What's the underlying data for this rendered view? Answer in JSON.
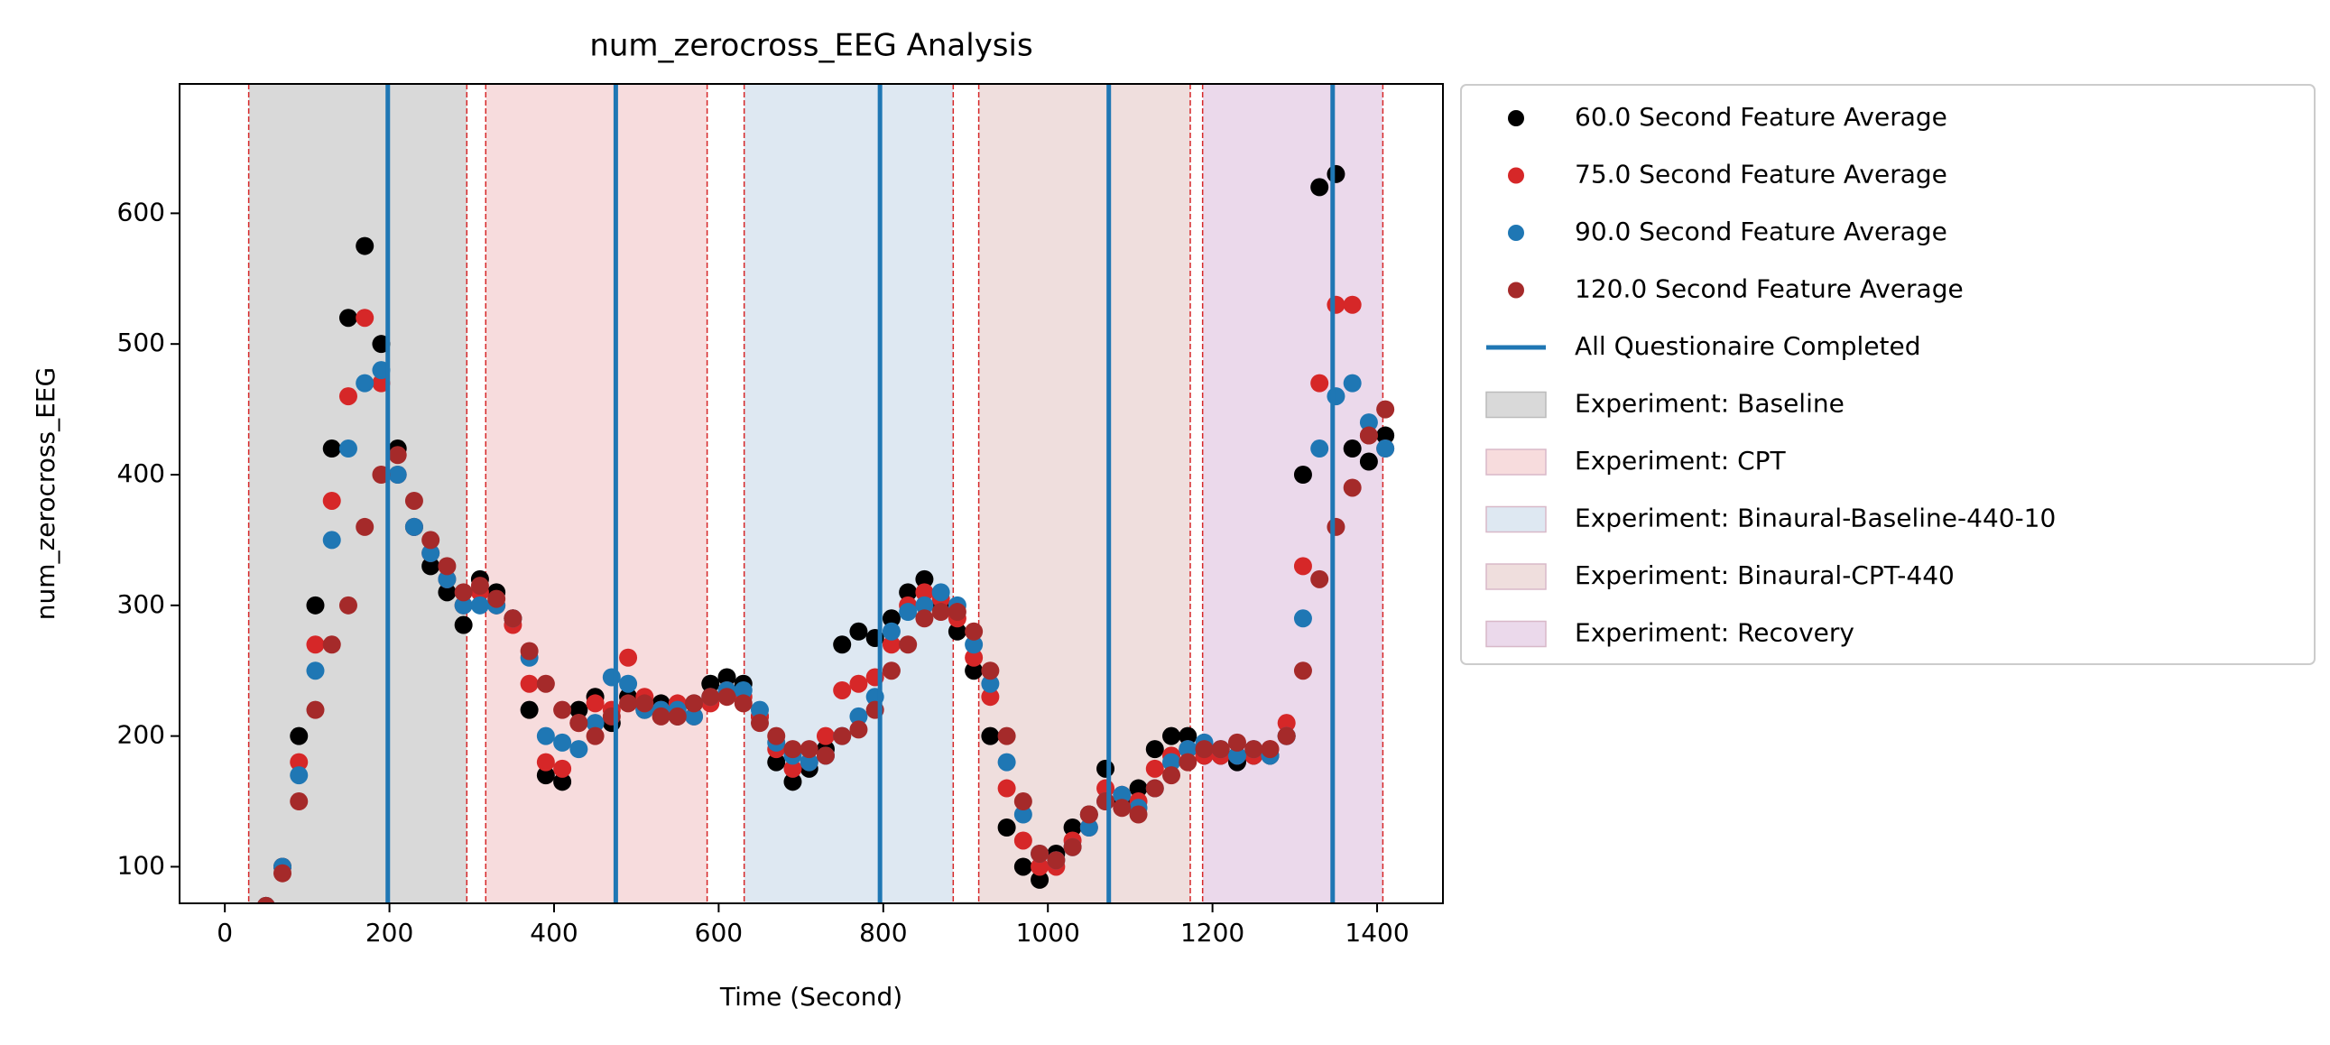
{
  "chart_data": {
    "type": "scatter",
    "title": "num_zerocross_EEG Analysis",
    "xlabel": "Time (Second)",
    "ylabel": "num_zerocross_EEG",
    "xlim": [
      -55,
      1480
    ],
    "ylim": [
      72,
      699
    ],
    "xticks": [
      0,
      200,
      400,
      600,
      800,
      1000,
      1200,
      1400
    ],
    "yticks": [
      100,
      200,
      300,
      400,
      500,
      600
    ],
    "grid": false,
    "legend_position": "outside right",
    "x": [
      50,
      70,
      90,
      110,
      130,
      150,
      170,
      190,
      210,
      230,
      250,
      270,
      290,
      310,
      330,
      350,
      370,
      390,
      410,
      430,
      450,
      470,
      490,
      510,
      530,
      550,
      570,
      590,
      610,
      630,
      650,
      670,
      690,
      710,
      730,
      750,
      770,
      790,
      810,
      830,
      850,
      870,
      890,
      910,
      930,
      950,
      970,
      990,
      1010,
      1030,
      1050,
      1070,
      1090,
      1110,
      1130,
      1150,
      1170,
      1190,
      1210,
      1230,
      1250,
      1270,
      1290,
      1310,
      1330,
      1350,
      1370,
      1390,
      1410
    ],
    "series": [
      {
        "name": "60.0 Second Feature Average",
        "color": "#000000",
        "values": [
          70,
          100,
          200,
          300,
          420,
          520,
          575,
          500,
          420,
          360,
          330,
          310,
          285,
          320,
          310,
          290,
          220,
          170,
          165,
          220,
          230,
          210,
          230,
          220,
          225,
          215,
          225,
          240,
          245,
          240,
          215,
          180,
          165,
          175,
          190,
          270,
          280,
          275,
          290,
          310,
          320,
          300,
          280,
          250,
          200,
          130,
          100,
          90,
          110,
          130,
          140,
          175,
          150,
          160,
          190,
          200,
          200,
          185,
          185,
          180,
          185,
          185,
          200,
          400,
          620,
          630,
          420,
          410,
          430
        ]
      },
      {
        "name": "75.0 Second Feature Average",
        "color": "#d62728",
        "values": [
          70,
          100,
          180,
          270,
          380,
          460,
          520,
          470,
          400,
          360,
          340,
          320,
          300,
          310,
          300,
          285,
          240,
          180,
          175,
          210,
          225,
          220,
          260,
          230,
          220,
          225,
          215,
          225,
          235,
          230,
          215,
          190,
          175,
          180,
          200,
          235,
          240,
          245,
          270,
          300,
          310,
          305,
          290,
          260,
          230,
          160,
          120,
          100,
          100,
          120,
          130,
          160,
          155,
          150,
          175,
          185,
          190,
          185,
          185,
          185,
          185,
          190,
          210,
          330,
          470,
          530,
          530,
          430,
          420
        ]
      },
      {
        "name": "90.0 Second Feature Average",
        "color": "#1f77b4",
        "values": [
          70,
          100,
          170,
          250,
          350,
          420,
          470,
          480,
          400,
          360,
          340,
          320,
          300,
          300,
          300,
          290,
          260,
          200,
          195,
          190,
          210,
          245,
          240,
          220,
          220,
          220,
          215,
          230,
          235,
          235,
          220,
          195,
          185,
          180,
          185,
          200,
          215,
          230,
          280,
          295,
          300,
          310,
          300,
          270,
          240,
          180,
          140,
          110,
          105,
          115,
          130,
          150,
          155,
          145,
          160,
          180,
          190,
          195,
          190,
          185,
          190,
          185,
          200,
          290,
          420,
          460,
          470,
          440,
          420
        ]
      },
      {
        "name": "120.0 Second Feature Average",
        "color": "#a52a2a",
        "values": [
          70,
          95,
          150,
          220,
          270,
          300,
          360,
          400,
          415,
          380,
          350,
          330,
          310,
          315,
          305,
          290,
          265,
          240,
          220,
          210,
          200,
          215,
          225,
          225,
          215,
          215,
          225,
          230,
          230,
          225,
          210,
          200,
          190,
          190,
          185,
          200,
          205,
          220,
          250,
          270,
          290,
          295,
          295,
          280,
          250,
          200,
          150,
          110,
          105,
          115,
          140,
          150,
          145,
          140,
          160,
          170,
          180,
          190,
          190,
          195,
          190,
          190,
          200,
          250,
          320,
          360,
          390,
          430,
          450
        ]
      }
    ],
    "vlines": {
      "name": "All Questionaire Completed",
      "color": "#1f77b4",
      "x": [
        198,
        475,
        796,
        1074,
        1346
      ]
    },
    "regions": [
      {
        "name": "Experiment: Baseline",
        "color": "#d9d9d9",
        "start": 29,
        "end": 294
      },
      {
        "name": "Experiment: CPT",
        "color": "#f7dcdd",
        "start": 317,
        "end": 586
      },
      {
        "name": "Experiment: Binaural-Baseline-440-10",
        "color": "#dee8f2",
        "start": 631,
        "end": 885
      },
      {
        "name": "Experiment: Binaural-CPT-440",
        "color": "#efdedd",
        "start": 916,
        "end": 1173
      },
      {
        "name": "Experiment: Recovery",
        "color": "#ebd9eb",
        "start": 1188,
        "end": 1407
      }
    ],
    "region_edge_color": "#d62728"
  }
}
